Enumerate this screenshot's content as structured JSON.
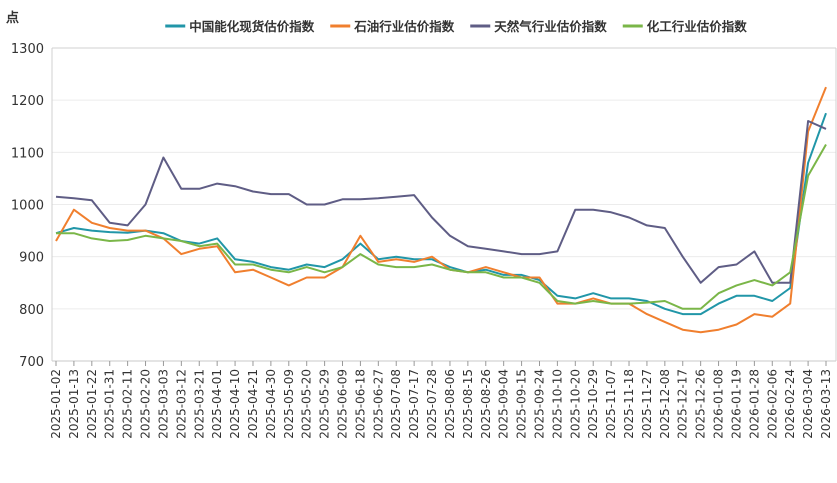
{
  "chart_data": {
    "type": "line",
    "unit_label": "点",
    "ylim": [
      700,
      1300
    ],
    "yticks": [
      700,
      800,
      900,
      1000,
      1100,
      1200,
      1300
    ],
    "grid": true,
    "legend_position": "top",
    "x": [
      "2025-01-02",
      "2025-01-13",
      "2025-01-22",
      "2025-01-31",
      "2025-02-11",
      "2025-02-20",
      "2025-03-03",
      "2025-03-12",
      "2025-03-21",
      "2025-04-01",
      "2025-04-10",
      "2025-04-21",
      "2025-04-30",
      "2025-05-09",
      "2025-05-20",
      "2025-05-29",
      "2025-06-09",
      "2025-06-18",
      "2025-06-27",
      "2025-07-08",
      "2025-07-17",
      "2025-07-28",
      "2025-08-06",
      "2025-08-15",
      "2025-08-26",
      "2025-09-04",
      "2025-09-15",
      "2025-09-24",
      "2025-10-10",
      "2025-10-20",
      "2025-10-29",
      "2025-11-07",
      "2025-11-18",
      "2025-11-27",
      "2025-12-08",
      "2025-12-17",
      "2025-12-26",
      "2026-01-08",
      "2026-01-19",
      "2026-01-28",
      "2026-02-06",
      "2026-02-24",
      "2026-03-04",
      "2026-03-13"
    ],
    "series": [
      {
        "name": "中国能化现货估价指数",
        "color": "#2196a8",
        "values": [
          945,
          955,
          950,
          947,
          946,
          950,
          945,
          930,
          925,
          935,
          895,
          890,
          880,
          875,
          885,
          880,
          895,
          925,
          895,
          900,
          895,
          895,
          880,
          870,
          875,
          865,
          865,
          855,
          825,
          820,
          830,
          820,
          820,
          815,
          800,
          790,
          790,
          810,
          825,
          825,
          815,
          840,
          1080,
          1175
        ]
      },
      {
        "name": "石油行业估价指数",
        "color": "#f07f2e",
        "values": [
          930,
          990,
          965,
          955,
          950,
          950,
          935,
          905,
          915,
          920,
          870,
          875,
          860,
          845,
          860,
          860,
          880,
          940,
          890,
          895,
          890,
          900,
          875,
          870,
          880,
          870,
          860,
          860,
          810,
          810,
          820,
          810,
          810,
          790,
          775,
          760,
          755,
          760,
          770,
          790,
          785,
          810,
          1140,
          1225
        ]
      },
      {
        "name": "天然气行业估价指数",
        "color": "#5f5d85",
        "values": [
          1015,
          1012,
          1008,
          965,
          960,
          1000,
          1090,
          1030,
          1030,
          1040,
          1035,
          1025,
          1020,
          1020,
          1000,
          1000,
          1010,
          1010,
          1012,
          1015,
          1018,
          975,
          940,
          920,
          915,
          910,
          905,
          905,
          910,
          990,
          990,
          985,
          975,
          960,
          955,
          900,
          850,
          880,
          885,
          910,
          850,
          850,
          1160,
          1145
        ]
      },
      {
        "name": "化工行业估价指数",
        "color": "#7ab648",
        "values": [
          945,
          945,
          935,
          930,
          932,
          940,
          935,
          930,
          920,
          925,
          885,
          885,
          875,
          870,
          880,
          870,
          880,
          905,
          885,
          880,
          880,
          885,
          875,
          870,
          870,
          860,
          860,
          850,
          815,
          810,
          815,
          810,
          810,
          812,
          815,
          800,
          800,
          830,
          845,
          855,
          845,
          870,
          1055,
          1115
        ]
      }
    ]
  }
}
